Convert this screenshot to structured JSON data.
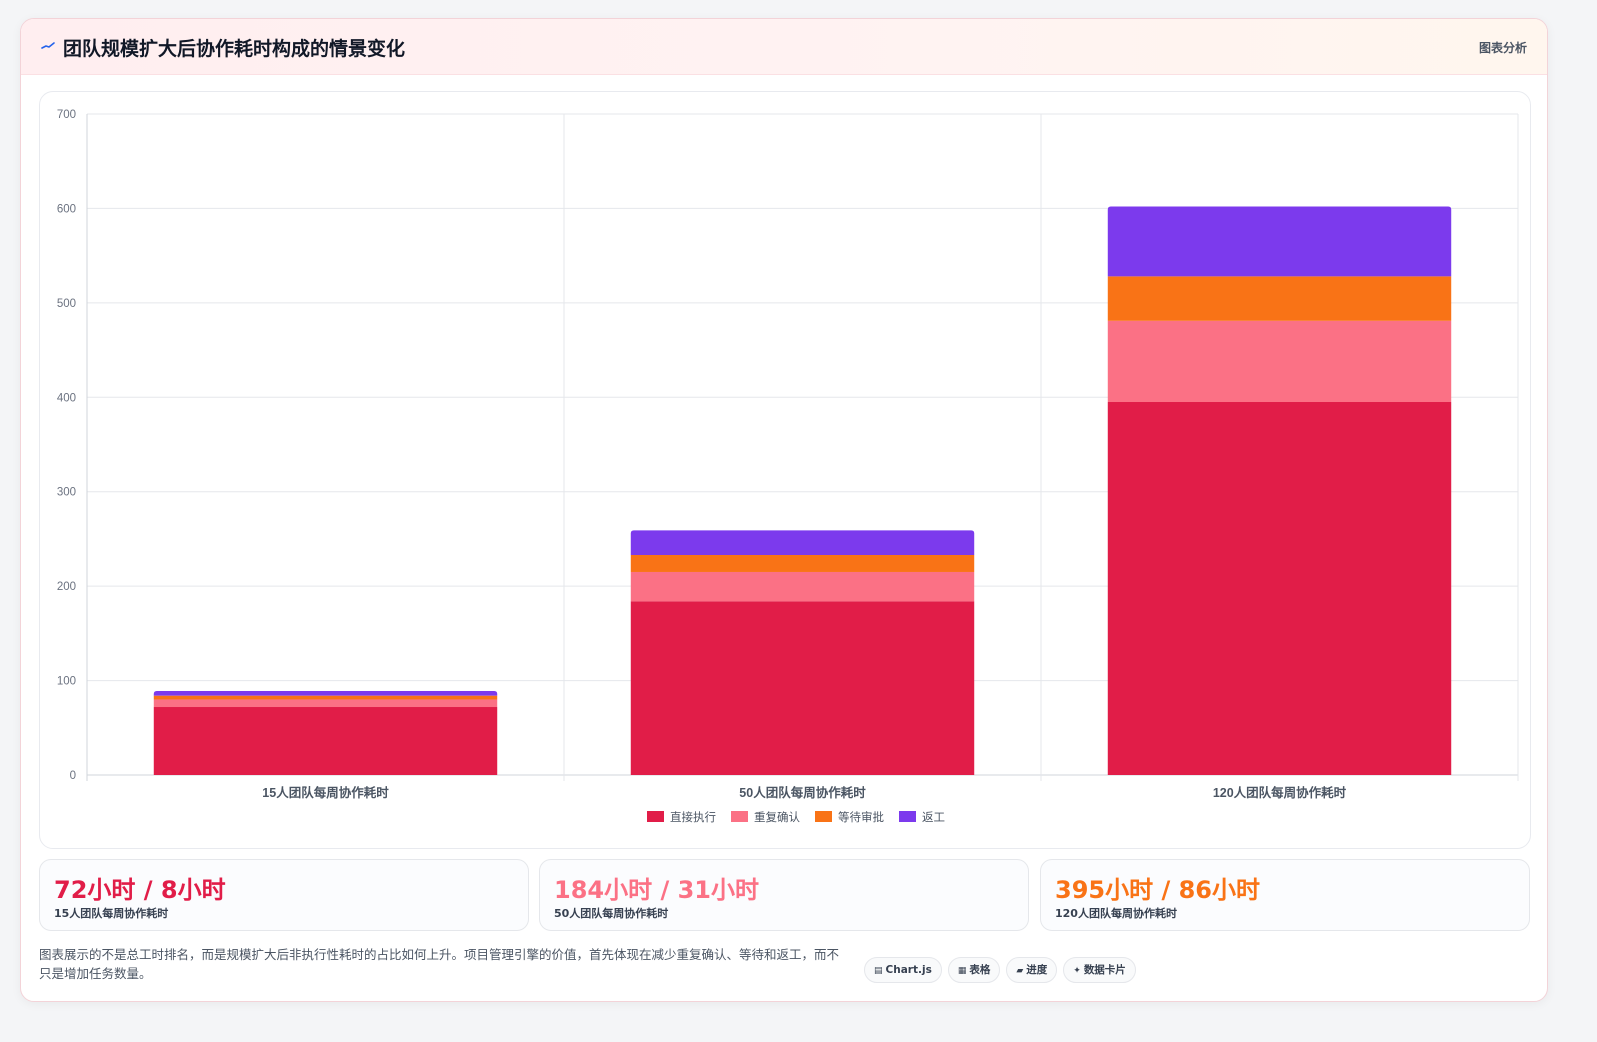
{
  "header": {
    "title": "团队规模扩大后协作耗时构成的情景变化",
    "tag": "图表分析",
    "icon": "pulse-line-icon"
  },
  "chart_data": {
    "type": "bar",
    "stacked": true,
    "categories": [
      "15人团队每周协作耗时",
      "50人团队每周协作耗时",
      "120人团队每周协作耗时"
    ],
    "series": [
      {
        "name": "直接执行",
        "color": "#e11d48",
        "values": [
          72,
          184,
          395
        ]
      },
      {
        "name": "重复确认",
        "color": "#fb7185",
        "values": [
          8,
          31,
          86
        ]
      },
      {
        "name": "等待审批",
        "color": "#f97316",
        "values": [
          4,
          18,
          47
        ]
      },
      {
        "name": "返工",
        "color": "#7c3aed",
        "values": [
          5,
          26,
          74
        ]
      }
    ],
    "ylim": [
      0,
      700
    ],
    "yticks": [
      0,
      100,
      200,
      300,
      400,
      500,
      600,
      700
    ],
    "grid": true,
    "legend_position": "bottom"
  },
  "stats": [
    {
      "value": "72小时 / 8小时",
      "label": "15人团队每周协作耗时",
      "color": "#e11d48"
    },
    {
      "value": "184小时 / 31小时",
      "label": "50人团队每周协作耗时",
      "color": "#fb7185"
    },
    {
      "value": "395小时 / 86小时",
      "label": "120人团队每周协作耗时",
      "color": "#f97316"
    }
  ],
  "note": "图表展示的不是总工时排名，而是规模扩大后非执行性耗时的占比如何上升。项目管理引擎的价值，首先体现在减少重复确认、等待和返工，而不只是增加任务数量。",
  "pills": [
    {
      "icon": "chart-icon",
      "glyph": "▤",
      "label": "Chart.js"
    },
    {
      "icon": "table-icon",
      "glyph": "▦",
      "label": "表格"
    },
    {
      "icon": "progress-icon",
      "glyph": "▰",
      "label": "进度"
    },
    {
      "icon": "card-icon",
      "glyph": "✦",
      "label": "数据卡片"
    }
  ]
}
